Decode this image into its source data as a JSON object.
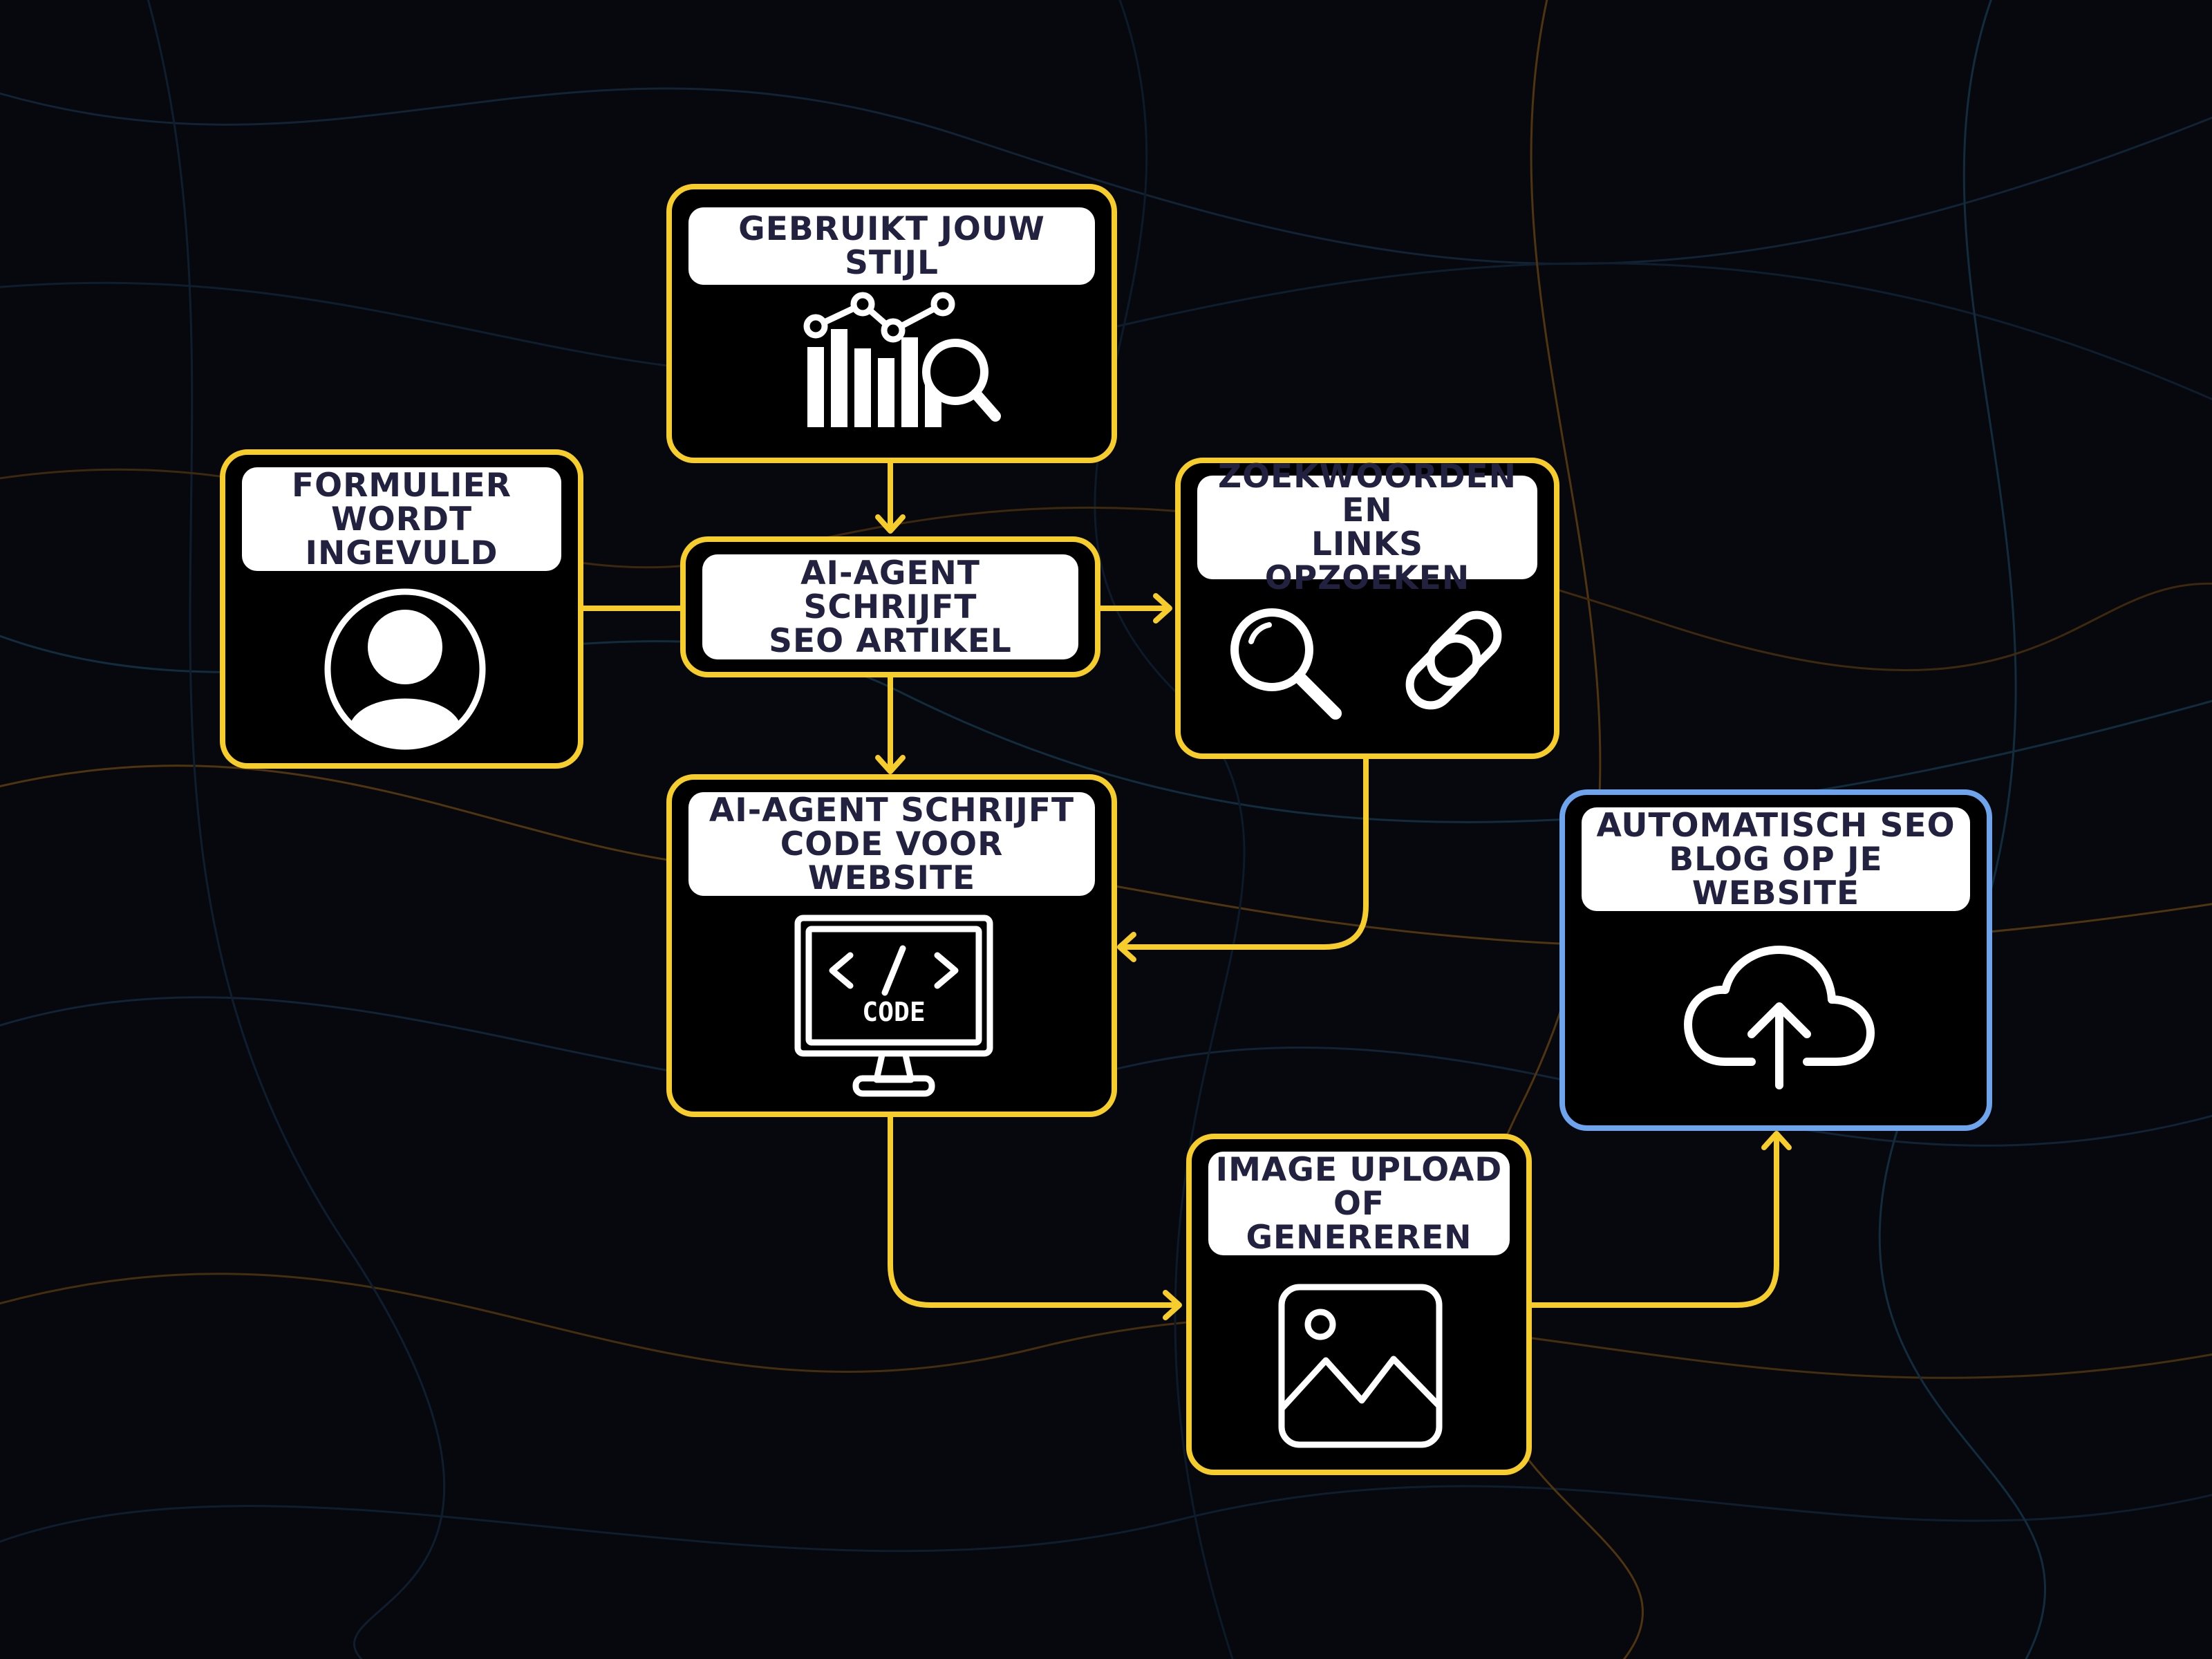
{
  "diagram": {
    "nodes": [
      {
        "id": "style",
        "label": "Gebruikt jouw stijl",
        "icon": "chart-search-icon"
      },
      {
        "id": "form",
        "label": "Formulier\nwordt ingevuld",
        "icon": "user-icon"
      },
      {
        "id": "article",
        "label": "AI-agent schrijft\nSEO artikel"
      },
      {
        "id": "keywords",
        "label": "Zoekwoorden en\nlinks opzoeken",
        "icons": [
          "search-icon",
          "link-icon"
        ]
      },
      {
        "id": "code",
        "label": "AI-agent schrijft\ncode voor website",
        "icon": "code-monitor-icon",
        "icon_text": "CODE"
      },
      {
        "id": "auto",
        "label": "Automatisch SEO\nblog op je website",
        "icon": "cloud-upload-icon"
      },
      {
        "id": "image",
        "label": "Image upload\nof genereren",
        "icon": "image-icon"
      }
    ],
    "edges": [
      {
        "from": "style",
        "to": "article"
      },
      {
        "from": "form",
        "to": "article"
      },
      {
        "from": "article",
        "to": "keywords"
      },
      {
        "from": "article",
        "to": "code"
      },
      {
        "from": "keywords",
        "to": "code"
      },
      {
        "from": "code",
        "to": "image"
      },
      {
        "from": "image",
        "to": "auto"
      }
    ],
    "colors": {
      "accent": "#f6cd2b",
      "final": "#6ea3ee",
      "label_text": "#22213f",
      "background": "#06080d"
    }
  }
}
